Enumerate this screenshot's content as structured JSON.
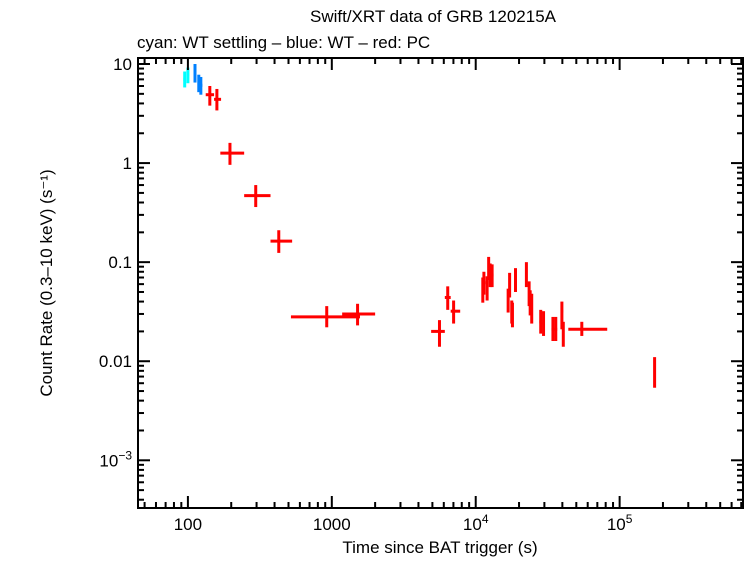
{
  "chart_data": {
    "type": "scatter",
    "title": "Swift/XRT data of GRB 120215A",
    "subtitle": "cyan: WT settling – blue: WT – red: PC",
    "xlabel": "Time since BAT trigger (s)",
    "ylabel": "Count Rate (0.3–10 keV) (s⁻¹)",
    "xscale": "log",
    "yscale": "log",
    "xlim": [
      45,
      720000
    ],
    "ylim": [
      0.00033,
      11.5
    ],
    "grid": false,
    "x_ticks": [
      {
        "value": 100,
        "label": "100"
      },
      {
        "value": 1000,
        "label": "1000"
      },
      {
        "value": 10000,
        "label": "10⁴"
      },
      {
        "value": 100000,
        "label": "10⁵"
      }
    ],
    "y_ticks": [
      {
        "value": 10,
        "label": "10"
      },
      {
        "value": 1,
        "label": "1"
      },
      {
        "value": 0.1,
        "label": "0.1"
      },
      {
        "value": 0.01,
        "label": "0.01"
      },
      {
        "value": 0.001,
        "label": "10⁻³"
      }
    ],
    "series": [
      {
        "name": "WT settling",
        "color": "#00ffff",
        "points": [
          {
            "t": 95,
            "r": 7.0,
            "t_lo": 93,
            "t_hi": 97,
            "r_lo": 5.8,
            "r_hi": 8.4
          },
          {
            "t": 100,
            "r": 7.8,
            "t_lo": 98,
            "t_hi": 102,
            "r_lo": 6.4,
            "r_hi": 9.2
          }
        ]
      },
      {
        "name": "WT",
        "color": "#0080ff",
        "points": [
          {
            "t": 112,
            "r": 8.1,
            "t_lo": 110,
            "t_hi": 114,
            "r_lo": 6.5,
            "r_hi": 10.0
          },
          {
            "t": 119,
            "r": 6.4,
            "t_lo": 117,
            "t_hi": 121,
            "r_lo": 5.2,
            "r_hi": 7.8
          },
          {
            "t": 123,
            "r": 6.1,
            "t_lo": 121,
            "t_hi": 126,
            "r_lo": 4.9,
            "r_hi": 7.4
          }
        ]
      },
      {
        "name": "PC",
        "color": "#ff0000",
        "points": [
          {
            "t": 142,
            "r": 4.9,
            "t_lo": 133,
            "t_hi": 152,
            "r_lo": 3.8,
            "r_hi": 6.0
          },
          {
            "t": 159,
            "r": 4.4,
            "t_lo": 152,
            "t_hi": 170,
            "r_lo": 3.4,
            "r_hi": 5.6
          },
          {
            "t": 196,
            "r": 1.26,
            "t_lo": 168,
            "t_hi": 246,
            "r_lo": 0.96,
            "r_hi": 1.6
          },
          {
            "t": 296,
            "r": 0.47,
            "t_lo": 246,
            "t_hi": 375,
            "r_lo": 0.36,
            "r_hi": 0.6
          },
          {
            "t": 428,
            "r": 0.163,
            "t_lo": 375,
            "t_hi": 530,
            "r_lo": 0.124,
            "r_hi": 0.21
          },
          {
            "t": 922,
            "r": 0.028,
            "t_lo": 520,
            "t_hi": 1570,
            "r_lo": 0.022,
            "r_hi": 0.036
          },
          {
            "t": 1510,
            "r": 0.03,
            "t_lo": 1180,
            "t_hi": 2000,
            "r_lo": 0.023,
            "r_hi": 0.038
          },
          {
            "t": 5600,
            "r": 0.02,
            "t_lo": 4900,
            "t_hi": 6100,
            "r_lo": 0.014,
            "r_hi": 0.026
          },
          {
            "t": 6390,
            "r": 0.044,
            "t_lo": 6100,
            "t_hi": 6700,
            "r_lo": 0.033,
            "r_hi": 0.057
          },
          {
            "t": 7020,
            "r": 0.032,
            "t_lo": 6700,
            "t_hi": 7800,
            "r_lo": 0.024,
            "r_hi": 0.041
          },
          {
            "t": 11200,
            "r": 0.052,
            "t_lo": 11000,
            "t_hi": 11400,
            "r_lo": 0.039,
            "r_hi": 0.07
          },
          {
            "t": 11400,
            "r": 0.062,
            "t_lo": 11200,
            "t_hi": 11700,
            "r_lo": 0.047,
            "r_hi": 0.08
          },
          {
            "t": 12000,
            "r": 0.055,
            "t_lo": 11800,
            "t_hi": 12200,
            "r_lo": 0.041,
            "r_hi": 0.072
          },
          {
            "t": 12300,
            "r": 0.087,
            "t_lo": 12100,
            "t_hi": 12500,
            "r_lo": 0.066,
            "r_hi": 0.113
          },
          {
            "t": 12600,
            "r": 0.074,
            "t_lo": 12400,
            "t_hi": 12900,
            "r_lo": 0.056,
            "r_hi": 0.097
          },
          {
            "t": 13000,
            "r": 0.074,
            "t_lo": 12800,
            "t_hi": 13300,
            "r_lo": 0.056,
            "r_hi": 0.095
          },
          {
            "t": 16800,
            "r": 0.041,
            "t_lo": 16500,
            "t_hi": 17100,
            "r_lo": 0.031,
            "r_hi": 0.054
          },
          {
            "t": 17200,
            "r": 0.058,
            "t_lo": 16900,
            "t_hi": 17500,
            "r_lo": 0.044,
            "r_hi": 0.078
          },
          {
            "t": 17800,
            "r": 0.031,
            "t_lo": 17500,
            "t_hi": 18100,
            "r_lo": 0.024,
            "r_hi": 0.041
          },
          {
            "t": 18000,
            "r": 0.03,
            "t_lo": 17700,
            "t_hi": 18300,
            "r_lo": 0.022,
            "r_hi": 0.039
          },
          {
            "t": 18900,
            "r": 0.066,
            "t_lo": 18600,
            "t_hi": 19300,
            "r_lo": 0.05,
            "r_hi": 0.087
          },
          {
            "t": 22500,
            "r": 0.074,
            "t_lo": 22100,
            "t_hi": 22900,
            "r_lo": 0.056,
            "r_hi": 0.1
          },
          {
            "t": 23500,
            "r": 0.048,
            "t_lo": 23100,
            "t_hi": 23900,
            "r_lo": 0.036,
            "r_hi": 0.064
          },
          {
            "t": 23900,
            "r": 0.039,
            "t_lo": 23500,
            "t_hi": 24300,
            "r_lo": 0.029,
            "r_hi": 0.052
          },
          {
            "t": 24500,
            "r": 0.037,
            "t_lo": 24100,
            "t_hi": 25000,
            "r_lo": 0.024,
            "r_hi": 0.048
          },
          {
            "t": 28300,
            "r": 0.025,
            "t_lo": 27700,
            "t_hi": 28900,
            "r_lo": 0.019,
            "r_hi": 0.033
          },
          {
            "t": 29600,
            "r": 0.024,
            "t_lo": 29000,
            "t_hi": 30300,
            "r_lo": 0.018,
            "r_hi": 0.032
          },
          {
            "t": 34400,
            "r": 0.021,
            "t_lo": 33600,
            "t_hi": 35200,
            "r_lo": 0.016,
            "r_hi": 0.028
          },
          {
            "t": 36000,
            "r": 0.021,
            "t_lo": 35200,
            "t_hi": 36800,
            "r_lo": 0.016,
            "r_hi": 0.028
          },
          {
            "t": 39700,
            "r": 0.032,
            "t_lo": 38900,
            "t_hi": 40500,
            "r_lo": 0.021,
            "r_hi": 0.04
          },
          {
            "t": 40600,
            "r": 0.019,
            "t_lo": 39800,
            "t_hi": 41400,
            "r_lo": 0.014,
            "r_hi": 0.025
          },
          {
            "t": 54600,
            "r": 0.021,
            "t_lo": 44000,
            "t_hi": 82000,
            "r_lo": 0.018,
            "r_hi": 0.025
          },
          {
            "t": 175000,
            "r": 0.0078,
            "t_lo": 174000,
            "t_hi": 176000,
            "r_lo": 0.0054,
            "r_hi": 0.011
          }
        ]
      }
    ]
  }
}
